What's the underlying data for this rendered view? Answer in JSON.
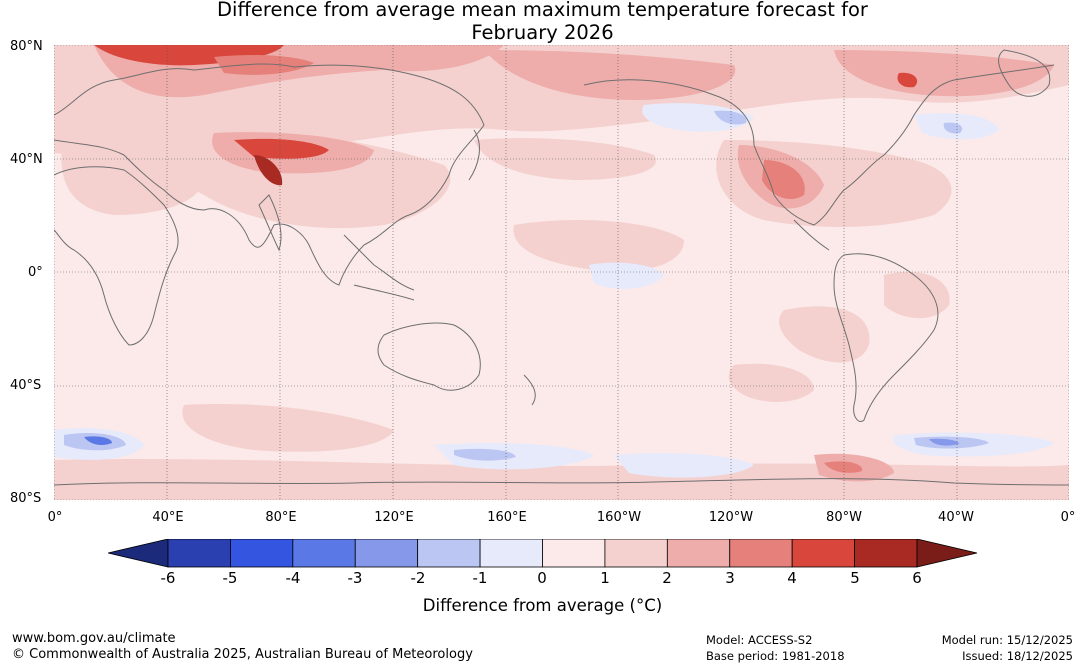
{
  "title": {
    "line1": "Difference from average mean maximum temperature forecast for",
    "line2": "February 2026"
  },
  "map": {
    "lat_labels": [
      "80°N",
      "40°N",
      "0°",
      "40°S",
      "80°S"
    ],
    "lon_labels": [
      "0°",
      "40°E",
      "80°E",
      "120°E",
      "160°E",
      "160°W",
      "120°W",
      "80°W",
      "40°W",
      "0°"
    ],
    "background_color": "#fbeae9"
  },
  "colorbar": {
    "title": "Difference from average (°C)",
    "tick_labels": [
      "-6",
      "-5",
      "-4",
      "-3",
      "-2",
      "-1",
      "0",
      "1",
      "2",
      "3",
      "4",
      "5",
      "6"
    ],
    "low_extend_color": "#1b2a7a",
    "high_extend_color": "#7a1c17",
    "bin_colors": [
      "#2a3fb0",
      "#3355e0",
      "#5a78e6",
      "#8598ea",
      "#bcc6f2",
      "#e6eafb",
      "#fbeae9",
      "#f4d1cf",
      "#eeadab",
      "#e6807a",
      "#d9463b",
      "#a82a22"
    ]
  },
  "footer": {
    "url": "www.bom.gov.au/climate",
    "copyright": "© Commonwealth of Australia 2025, Australian Bureau of Meteorology",
    "model": "Model: ACCESS-S2",
    "base_period": "Base period: 1981-2018",
    "model_run": "Model run: 15/12/2025",
    "issued": "Issued: 18/12/2025"
  }
}
